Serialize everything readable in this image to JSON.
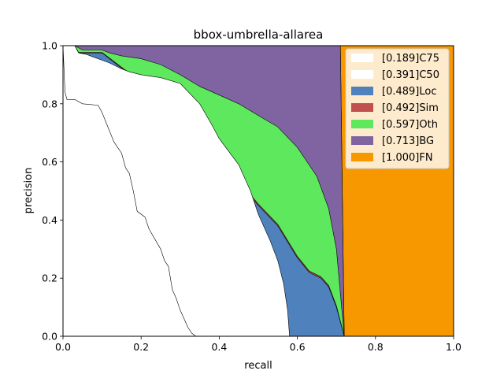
{
  "chart_data": {
    "type": "area",
    "title": "bbox-umbrella-allarea",
    "xlabel": "recall",
    "ylabel": "precision",
    "xlim": [
      0,
      1
    ],
    "ylim": [
      0,
      1
    ],
    "xticks": [
      "0.0",
      "0.2",
      "0.4",
      "0.6",
      "0.8",
      "1.0"
    ],
    "yticks": [
      "0.0",
      "0.2",
      "0.4",
      "0.6",
      "0.8",
      "1.0"
    ],
    "grid": false,
    "legend_position": "top-right",
    "series": [
      {
        "name": "[0.189]C75",
        "color": "#ffffff",
        "x": [
          0.0,
          0.005,
          0.01,
          0.03,
          0.05,
          0.09,
          0.1,
          0.13,
          0.14,
          0.15,
          0.16,
          0.17,
          0.18,
          0.19,
          0.21,
          0.22,
          0.25,
          0.26,
          0.27,
          0.28,
          0.29,
          0.3,
          0.31,
          0.32,
          0.33,
          0.34
        ],
        "y": [
          1.0,
          0.84,
          0.815,
          0.815,
          0.8,
          0.795,
          0.77,
          0.67,
          0.65,
          0.63,
          0.58,
          0.56,
          0.5,
          0.43,
          0.41,
          0.37,
          0.3,
          0.26,
          0.24,
          0.16,
          0.13,
          0.09,
          0.06,
          0.03,
          0.01,
          0.0
        ]
      },
      {
        "name": "[0.391]C50",
        "color": "#ffffff",
        "x": [
          0.0,
          0.03,
          0.04,
          0.06,
          0.08,
          0.1,
          0.12,
          0.15,
          0.17,
          0.2,
          0.25,
          0.3,
          0.35,
          0.38,
          0.4,
          0.45,
          0.48,
          0.5,
          0.53,
          0.55,
          0.565,
          0.575,
          0.58
        ],
        "y": [
          1.0,
          1.0,
          0.975,
          0.97,
          0.96,
          0.95,
          0.94,
          0.92,
          0.91,
          0.9,
          0.89,
          0.87,
          0.8,
          0.73,
          0.68,
          0.59,
          0.5,
          0.42,
          0.33,
          0.26,
          0.18,
          0.09,
          0.0
        ]
      },
      {
        "name": "[0.489]Loc",
        "color": "#4f81bd",
        "x": [
          0.0,
          0.03,
          0.04,
          0.1,
          0.2,
          0.22,
          0.26,
          0.3,
          0.3,
          0.32,
          0.35,
          0.38,
          0.42,
          0.45,
          0.5,
          0.55,
          0.6,
          0.63,
          0.66,
          0.68,
          0.7,
          0.72
        ],
        "y": [
          1.0,
          1.0,
          0.975,
          0.975,
          0.87,
          0.85,
          0.84,
          0.81,
          0.8,
          0.8,
          0.75,
          0.66,
          0.6,
          0.53,
          0.45,
          0.38,
          0.27,
          0.22,
          0.2,
          0.17,
          0.1,
          0.0
        ]
      },
      {
        "name": "[0.492]Sim",
        "color": "#c0504d",
        "x": [
          0.0,
          0.03,
          0.04,
          0.1,
          0.2,
          0.22,
          0.26,
          0.3,
          0.3,
          0.32,
          0.35,
          0.38,
          0.42,
          0.45,
          0.5,
          0.55,
          0.6,
          0.63,
          0.66,
          0.68,
          0.7,
          0.72
        ],
        "y": [
          1.0,
          1.0,
          0.977,
          0.977,
          0.875,
          0.855,
          0.845,
          0.815,
          0.805,
          0.805,
          0.755,
          0.665,
          0.605,
          0.535,
          0.455,
          0.385,
          0.275,
          0.225,
          0.205,
          0.175,
          0.105,
          0.0
        ]
      },
      {
        "name": "[0.597]Oth",
        "color": "#5ee85e",
        "x": [
          0.0,
          0.03,
          0.05,
          0.1,
          0.12,
          0.15,
          0.2,
          0.25,
          0.3,
          0.35,
          0.4,
          0.45,
          0.5,
          0.55,
          0.6,
          0.65,
          0.68,
          0.7,
          0.72
        ],
        "y": [
          1.0,
          1.0,
          0.985,
          0.985,
          0.975,
          0.965,
          0.955,
          0.935,
          0.9,
          0.86,
          0.83,
          0.8,
          0.76,
          0.72,
          0.65,
          0.55,
          0.44,
          0.3,
          0.0
        ]
      },
      {
        "name": "[0.713]BG",
        "color": "#8064a2",
        "x": [
          0.0,
          0.71,
          0.72
        ],
        "y": [
          1.0,
          1.0,
          0.0
        ]
      },
      {
        "name": "[1.000]FN",
        "color": "#f79800",
        "x": [
          0.71,
          1.0,
          1.0,
          0.72
        ],
        "y": [
          1.0,
          1.0,
          0.0,
          0.0
        ]
      }
    ]
  }
}
